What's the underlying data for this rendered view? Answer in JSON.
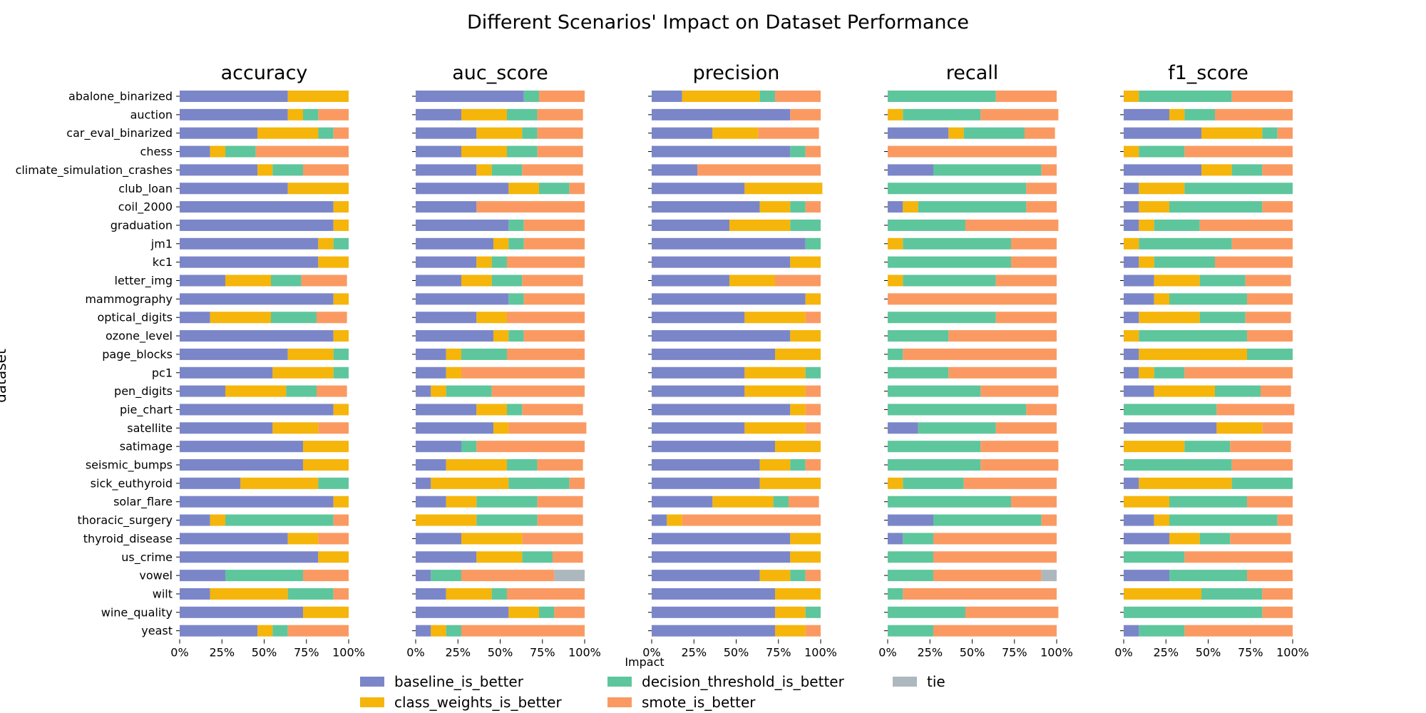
{
  "chart_data": {
    "type": "bar",
    "orientation": "horizontal",
    "stacked": true,
    "normalized": true,
    "title": "Different Scenarios' Impact on Dataset Performance",
    "xlabel": "Impact",
    "ylabel": "dataset",
    "xlim": [
      0,
      100
    ],
    "xtick_labels": [
      "0%",
      "25%",
      "50%",
      "75%",
      "100%"
    ],
    "legend_position": "bottom",
    "categories": [
      "abalone_binarized",
      "auction",
      "car_eval_binarized",
      "chess",
      "climate_simulation_crashes",
      "club_loan",
      "coil_2000",
      "graduation",
      "jm1",
      "kc1",
      "letter_img",
      "mammography",
      "optical_digits",
      "ozone_level",
      "page_blocks",
      "pc1",
      "pen_digits",
      "pie_chart",
      "satellite",
      "satimage",
      "seismic_bumps",
      "sick_euthyroid",
      "solar_flare",
      "thoracic_surgery",
      "thyroid_disease",
      "us_crime",
      "vowel",
      "wilt",
      "wine_quality",
      "yeast"
    ],
    "series": [
      {
        "name": "baseline_is_better",
        "color": "#7b86c9"
      },
      {
        "name": "class_weights_is_better",
        "color": "#f5b50a"
      },
      {
        "name": "decision_threshold_is_better",
        "color": "#5ec69c"
      },
      {
        "name": "smote_is_better",
        "color": "#fa9a62"
      },
      {
        "name": "tie",
        "color": "#adb8be"
      }
    ],
    "panels": [
      {
        "title": "accuracy",
        "values": [
          [
            64,
            36,
            0,
            0,
            0
          ],
          [
            64,
            9,
            9,
            18,
            0
          ],
          [
            46,
            36,
            9,
            9,
            0
          ],
          [
            18,
            9,
            18,
            55,
            0
          ],
          [
            46,
            9,
            18,
            27,
            0
          ],
          [
            64,
            36,
            0,
            0,
            0
          ],
          [
            91,
            9,
            0,
            0,
            0
          ],
          [
            91,
            9,
            0,
            0,
            0
          ],
          [
            82,
            9,
            9,
            0,
            0
          ],
          [
            82,
            18,
            0,
            0,
            0
          ],
          [
            27,
            27,
            18,
            27,
            0
          ],
          [
            91,
            9,
            0,
            0,
            0
          ],
          [
            18,
            36,
            27,
            18,
            0
          ],
          [
            91,
            9,
            0,
            0,
            0
          ],
          [
            64,
            27,
            9,
            0,
            0
          ],
          [
            55,
            36,
            9,
            0,
            0
          ],
          [
            27,
            36,
            18,
            18,
            0
          ],
          [
            91,
            9,
            0,
            0,
            0
          ],
          [
            55,
            27,
            0,
            18,
            0
          ],
          [
            73,
            27,
            0,
            0,
            0
          ],
          [
            73,
            27,
            0,
            0,
            0
          ],
          [
            36,
            46,
            18,
            0,
            0
          ],
          [
            91,
            9,
            0,
            0,
            0
          ],
          [
            18,
            9,
            64,
            9,
            0
          ],
          [
            64,
            18,
            0,
            18,
            0
          ],
          [
            82,
            18,
            0,
            0,
            0
          ],
          [
            27,
            0,
            46,
            27,
            0
          ],
          [
            18,
            46,
            27,
            9,
            0
          ],
          [
            73,
            27,
            0,
            0,
            0
          ],
          [
            46,
            9,
            9,
            36,
            0
          ]
        ]
      },
      {
        "title": "auc_score",
        "values": [
          [
            64,
            0,
            9,
            27,
            0
          ],
          [
            27,
            27,
            18,
            27,
            0
          ],
          [
            36,
            27,
            9,
            27,
            0
          ],
          [
            27,
            27,
            18,
            27,
            0
          ],
          [
            36,
            9,
            18,
            36,
            0
          ],
          [
            55,
            18,
            18,
            9,
            0
          ],
          [
            36,
            0,
            0,
            64,
            0
          ],
          [
            55,
            0,
            9,
            36,
            0
          ],
          [
            46,
            9,
            9,
            36,
            0
          ],
          [
            36,
            9,
            9,
            46,
            0
          ],
          [
            27,
            18,
            18,
            36,
            0
          ],
          [
            55,
            0,
            9,
            36,
            0
          ],
          [
            36,
            18,
            0,
            46,
            0
          ],
          [
            46,
            9,
            9,
            36,
            0
          ],
          [
            18,
            9,
            27,
            46,
            0
          ],
          [
            18,
            9,
            0,
            73,
            0
          ],
          [
            9,
            9,
            27,
            55,
            0
          ],
          [
            36,
            18,
            9,
            36,
            0
          ],
          [
            46,
            9,
            0,
            46,
            0
          ],
          [
            27,
            0,
            9,
            64,
            0
          ],
          [
            18,
            36,
            18,
            27,
            0
          ],
          [
            9,
            46,
            36,
            9,
            0
          ],
          [
            18,
            18,
            36,
            27,
            0
          ],
          [
            0,
            36,
            36,
            27,
            0
          ],
          [
            27,
            36,
            0,
            36,
            0
          ],
          [
            36,
            27,
            18,
            18,
            0
          ],
          [
            9,
            0,
            18,
            55,
            18
          ],
          [
            18,
            27,
            9,
            46,
            0
          ],
          [
            55,
            18,
            9,
            18,
            0
          ],
          [
            9,
            9,
            9,
            73,
            0
          ]
        ]
      },
      {
        "title": "precision",
        "values": [
          [
            18,
            46,
            9,
            27,
            0
          ],
          [
            82,
            0,
            0,
            18,
            0
          ],
          [
            36,
            27,
            0,
            36,
            0
          ],
          [
            82,
            0,
            9,
            9,
            0
          ],
          [
            27,
            0,
            0,
            73,
            0
          ],
          [
            55,
            46,
            0,
            0,
            0
          ],
          [
            64,
            18,
            9,
            9,
            0
          ],
          [
            46,
            36,
            18,
            0,
            0
          ],
          [
            91,
            0,
            9,
            0,
            0
          ],
          [
            82,
            18,
            0,
            0,
            0
          ],
          [
            46,
            27,
            0,
            27,
            0
          ],
          [
            91,
            9,
            0,
            0,
            0
          ],
          [
            55,
            36,
            0,
            9,
            0
          ],
          [
            82,
            18,
            0,
            0,
            0
          ],
          [
            73,
            27,
            0,
            0,
            0
          ],
          [
            55,
            36,
            9,
            0,
            0
          ],
          [
            55,
            36,
            0,
            9,
            0
          ],
          [
            82,
            9,
            0,
            9,
            0
          ],
          [
            55,
            36,
            0,
            9,
            0
          ],
          [
            73,
            27,
            0,
            0,
            0
          ],
          [
            64,
            18,
            9,
            9,
            0
          ],
          [
            64,
            36,
            0,
            0,
            0
          ],
          [
            36,
            36,
            9,
            18,
            0
          ],
          [
            9,
            9,
            0,
            82,
            0
          ],
          [
            82,
            18,
            0,
            0,
            0
          ],
          [
            82,
            18,
            0,
            0,
            0
          ],
          [
            64,
            18,
            9,
            9,
            0
          ],
          [
            73,
            27,
            0,
            0,
            0
          ],
          [
            73,
            18,
            9,
            0,
            0
          ],
          [
            73,
            18,
            0,
            9,
            0
          ]
        ]
      },
      {
        "title": "recall",
        "values": [
          [
            0,
            0,
            64,
            36,
            0
          ],
          [
            0,
            9,
            46,
            46,
            0
          ],
          [
            36,
            9,
            36,
            18,
            0
          ],
          [
            0,
            0,
            0,
            100,
            0
          ],
          [
            27,
            0,
            64,
            9,
            0
          ],
          [
            0,
            0,
            82,
            18,
            0
          ],
          [
            9,
            9,
            64,
            18,
            0
          ],
          [
            0,
            0,
            46,
            55,
            0
          ],
          [
            0,
            9,
            64,
            27,
            0
          ],
          [
            0,
            0,
            73,
            27,
            0
          ],
          [
            0,
            9,
            55,
            36,
            0
          ],
          [
            0,
            0,
            0,
            100,
            0
          ],
          [
            0,
            0,
            64,
            36,
            0
          ],
          [
            0,
            0,
            36,
            64,
            0
          ],
          [
            0,
            0,
            9,
            91,
            0
          ],
          [
            0,
            0,
            36,
            64,
            0
          ],
          [
            0,
            0,
            55,
            46,
            0
          ],
          [
            0,
            0,
            82,
            18,
            0
          ],
          [
            18,
            0,
            46,
            36,
            0
          ],
          [
            0,
            0,
            55,
            46,
            0
          ],
          [
            0,
            0,
            55,
            46,
            0
          ],
          [
            0,
            9,
            36,
            55,
            0
          ],
          [
            0,
            0,
            73,
            27,
            0
          ],
          [
            27,
            0,
            64,
            9,
            0
          ],
          [
            9,
            0,
            18,
            73,
            0
          ],
          [
            0,
            0,
            27,
            73,
            0
          ],
          [
            0,
            0,
            27,
            64,
            9
          ],
          [
            0,
            0,
            9,
            91,
            0
          ],
          [
            0,
            0,
            46,
            55,
            0
          ],
          [
            0,
            0,
            27,
            73,
            0
          ]
        ]
      },
      {
        "title": "f1_score",
        "values": [
          [
            0,
            9,
            55,
            36,
            0
          ],
          [
            27,
            9,
            18,
            46,
            0
          ],
          [
            46,
            36,
            9,
            9,
            0
          ],
          [
            0,
            9,
            27,
            64,
            0
          ],
          [
            46,
            18,
            18,
            18,
            0
          ],
          [
            9,
            27,
            64,
            0,
            0
          ],
          [
            9,
            18,
            55,
            18,
            0
          ],
          [
            9,
            9,
            27,
            55,
            0
          ],
          [
            0,
            9,
            55,
            36,
            0
          ],
          [
            9,
            9,
            36,
            46,
            0
          ],
          [
            18,
            27,
            27,
            27,
            0
          ],
          [
            18,
            9,
            46,
            27,
            0
          ],
          [
            9,
            36,
            27,
            27,
            0
          ],
          [
            0,
            9,
            64,
            27,
            0
          ],
          [
            9,
            64,
            27,
            0,
            0
          ],
          [
            9,
            9,
            18,
            64,
            0
          ],
          [
            18,
            36,
            27,
            18,
            0
          ],
          [
            0,
            0,
            55,
            46,
            0
          ],
          [
            55,
            27,
            0,
            18,
            0
          ],
          [
            0,
            36,
            27,
            36,
            0
          ],
          [
            0,
            0,
            64,
            36,
            0
          ],
          [
            9,
            55,
            36,
            0,
            0
          ],
          [
            0,
            27,
            46,
            27,
            0
          ],
          [
            18,
            9,
            64,
            9,
            0
          ],
          [
            27,
            18,
            18,
            36,
            0
          ],
          [
            0,
            0,
            36,
            64,
            0
          ],
          [
            27,
            0,
            46,
            27,
            0
          ],
          [
            0,
            46,
            36,
            18,
            0
          ],
          [
            0,
            0,
            82,
            18,
            0
          ],
          [
            9,
            0,
            27,
            64,
            0
          ]
        ]
      }
    ]
  }
}
